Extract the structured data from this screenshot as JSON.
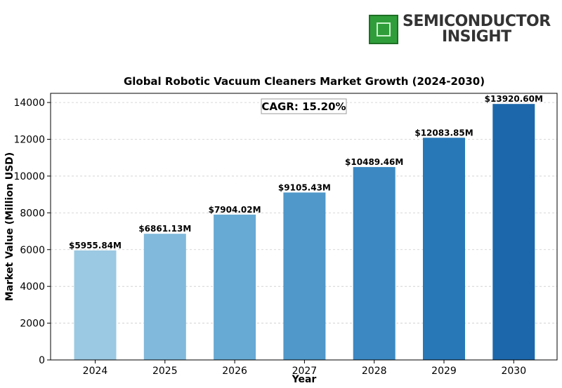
{
  "brand": {
    "line1": "SEMICONDUCTOR",
    "line2": "INSIGHT",
    "accent_color": "#2f9e3a"
  },
  "chart_data": {
    "type": "bar",
    "title": "Global Robotic Vacuum Cleaners Market Growth (2024-2030)",
    "xlabel": "Year",
    "ylabel": "Market Value (Million USD)",
    "categories": [
      "2024",
      "2025",
      "2026",
      "2027",
      "2028",
      "2029",
      "2030"
    ],
    "values": [
      5955.84,
      6861.13,
      7904.02,
      9105.43,
      10489.46,
      12083.85,
      13920.6
    ],
    "data_labels": [
      "$5955.84M",
      "$6861.13M",
      "$7904.02M",
      "$9105.43M",
      "$10489.46M",
      "$12083.85M",
      "$13920.60M"
    ],
    "ylim": [
      0,
      14500
    ],
    "yticks": [
      0,
      2000,
      4000,
      6000,
      8000,
      10000,
      12000,
      14000
    ],
    "annotation": "CAGR: 15.20%",
    "grid": true,
    "bar_colors": [
      "#9bc8e2",
      "#80b9db",
      "#67aad4",
      "#4f98c9",
      "#3b88c3",
      "#2878b8",
      "#1c67ab"
    ]
  }
}
